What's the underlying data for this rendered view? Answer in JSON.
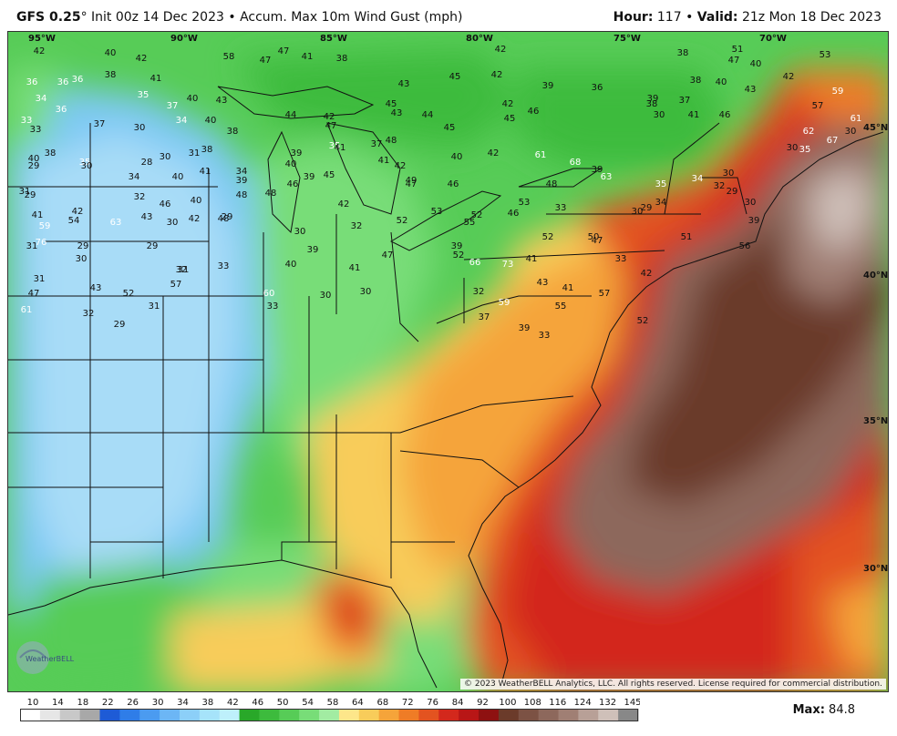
{
  "header": {
    "model": "GFS 0.25",
    "degree_mark": "°",
    "init": "Init 00z 14 Dec 2023",
    "sep": "•",
    "product": "Accum. Max 10m Wind Gust (mph)",
    "hour_label": "Hour:",
    "hour_value": "117",
    "valid_label": "Valid:",
    "valid_value": "21z Mon 18 Dec 2023"
  },
  "max_label": "Max:",
  "max_value": "84.8",
  "copyright": "© 2023 WeatherBELL Analytics, LLC. All rights reserved. License required for commercial distribution.",
  "logo_text": "WeatherBELL",
  "map_labels": {
    "lon": [
      "95°W",
      "90°W",
      "85°W",
      "80°W",
      "75°W",
      "70°W"
    ],
    "lat": [
      "45°N",
      "40°N",
      "35°N",
      "30°N"
    ]
  },
  "legend": {
    "ticks": [
      "10",
      "14",
      "18",
      "22",
      "26",
      "30",
      "34",
      "38",
      "42",
      "46",
      "50",
      "54",
      "58",
      "64",
      "68",
      "72",
      "76",
      "84",
      "92",
      "100",
      "108",
      "116",
      "124",
      "132",
      "145"
    ],
    "colors": [
      "#ffffff",
      "#e6e6e6",
      "#c8c8c8",
      "#a8a8a8",
      "#1e5bd6",
      "#2f7de8",
      "#4b9bf0",
      "#6cb6f5",
      "#8ccff8",
      "#a6e3fa",
      "#bef0fb",
      "#29a829",
      "#3dbb3d",
      "#57cc57",
      "#78dd78",
      "#a2eca2",
      "#fde68a",
      "#f8cc5a",
      "#f5a43a",
      "#ef7c26",
      "#e35320",
      "#d3281c",
      "#b81616",
      "#8e1111",
      "#6b3b2a",
      "#7c5244",
      "#8d685c",
      "#a07f74",
      "#b8a097",
      "#cfc0b9",
      "#888888"
    ]
  },
  "wind_values": [
    {
      "v": "42",
      "c": "d"
    },
    {
      "v": "40",
      "c": "d"
    },
    {
      "v": "42",
      "c": "d"
    },
    {
      "v": "41",
      "c": "d"
    },
    {
      "v": "58",
      "c": "d"
    },
    {
      "v": "47",
      "c": "d"
    },
    {
      "v": "47",
      "c": "d"
    },
    {
      "v": "41",
      "c": "d"
    },
    {
      "v": "38",
      "c": "d"
    },
    {
      "v": "42",
      "c": "d"
    },
    {
      "v": "38",
      "c": "d"
    },
    {
      "v": "51",
      "c": "d"
    },
    {
      "v": "47",
      "c": "d"
    },
    {
      "v": "40",
      "c": "d"
    },
    {
      "v": "53",
      "c": "d"
    },
    {
      "v": "36",
      "c": "w"
    },
    {
      "v": "36",
      "c": "w"
    },
    {
      "v": "38",
      "c": "d"
    },
    {
      "v": "36",
      "c": "w"
    },
    {
      "v": "45",
      "c": "d"
    },
    {
      "v": "42",
      "c": "d"
    },
    {
      "v": "43",
      "c": "d"
    },
    {
      "v": "42",
      "c": "d"
    },
    {
      "v": "39",
      "c": "d"
    },
    {
      "v": "38",
      "c": "d"
    },
    {
      "v": "40",
      "c": "d"
    },
    {
      "v": "43",
      "c": "d"
    },
    {
      "v": "42",
      "c": "d"
    },
    {
      "v": "59",
      "c": "w"
    },
    {
      "v": "34",
      "c": "w"
    },
    {
      "v": "36",
      "c": "w"
    },
    {
      "v": "35",
      "c": "w"
    },
    {
      "v": "40",
      "c": "d"
    },
    {
      "v": "43",
      "c": "d"
    },
    {
      "v": "37",
      "c": "w"
    },
    {
      "v": "45",
      "c": "d"
    },
    {
      "v": "36",
      "c": "d"
    },
    {
      "v": "39",
      "c": "d"
    },
    {
      "v": "37",
      "c": "d"
    },
    {
      "v": "38",
      "c": "d"
    },
    {
      "v": "57",
      "c": "d"
    },
    {
      "v": "33",
      "c": "w"
    },
    {
      "v": "37",
      "c": "d"
    },
    {
      "v": "44",
      "c": "d"
    },
    {
      "v": "42",
      "c": "d"
    },
    {
      "v": "43",
      "c": "d"
    },
    {
      "v": "44",
      "c": "d"
    },
    {
      "v": "46",
      "c": "d"
    },
    {
      "v": "30",
      "c": "d"
    },
    {
      "v": "41",
      "c": "d"
    },
    {
      "v": "46",
      "c": "d"
    },
    {
      "v": "61",
      "c": "w"
    },
    {
      "v": "33",
      "c": "d"
    },
    {
      "v": "34",
      "c": "w"
    },
    {
      "v": "40",
      "c": "d"
    },
    {
      "v": "38",
      "c": "d"
    },
    {
      "v": "47",
      "c": "d"
    },
    {
      "v": "45",
      "c": "d"
    },
    {
      "v": "37",
      "c": "d"
    },
    {
      "v": "45",
      "c": "d"
    },
    {
      "v": "62",
      "c": "w"
    },
    {
      "v": "30",
      "c": "d"
    },
    {
      "v": "30",
      "c": "d"
    },
    {
      "v": "38",
      "c": "d"
    },
    {
      "v": "40",
      "c": "d"
    },
    {
      "v": "35",
      "c": "w"
    },
    {
      "v": "48",
      "c": "d"
    },
    {
      "v": "39",
      "c": "d"
    },
    {
      "v": "67",
      "c": "w"
    },
    {
      "v": "40",
      "c": "d"
    },
    {
      "v": "38",
      "c": "d"
    },
    {
      "v": "35",
      "c": "w"
    },
    {
      "v": "28",
      "c": "d"
    },
    {
      "v": "30",
      "c": "d"
    },
    {
      "v": "31",
      "c": "d"
    },
    {
      "v": "34",
      "c": "d"
    },
    {
      "v": "39",
      "c": "d"
    },
    {
      "v": "41",
      "c": "d"
    },
    {
      "v": "41",
      "c": "d"
    },
    {
      "v": "40",
      "c": "d"
    },
    {
      "v": "42",
      "c": "d"
    },
    {
      "v": "61",
      "c": "w"
    },
    {
      "v": "68",
      "c": "w"
    },
    {
      "v": "39",
      "c": "d"
    },
    {
      "v": "35",
      "c": "w"
    },
    {
      "v": "30",
      "c": "d"
    },
    {
      "v": "29",
      "c": "d"
    },
    {
      "v": "30",
      "c": "d"
    },
    {
      "v": "34",
      "c": "d"
    },
    {
      "v": "40",
      "c": "d"
    },
    {
      "v": "41",
      "c": "d"
    },
    {
      "v": "39",
      "c": "d"
    },
    {
      "v": "45",
      "c": "d"
    },
    {
      "v": "46",
      "c": "d"
    },
    {
      "v": "42",
      "c": "d"
    },
    {
      "v": "47",
      "c": "d"
    },
    {
      "v": "46",
      "c": "d"
    },
    {
      "v": "48",
      "c": "d"
    },
    {
      "v": "63",
      "c": "w"
    },
    {
      "v": "35",
      "c": "w"
    },
    {
      "v": "34",
      "c": "w"
    },
    {
      "v": "30",
      "c": "d"
    },
    {
      "v": "29",
      "c": "d"
    },
    {
      "v": "31",
      "c": "d"
    },
    {
      "v": "32",
      "c": "d"
    },
    {
      "v": "46",
      "c": "d"
    },
    {
      "v": "40",
      "c": "d"
    },
    {
      "v": "48",
      "c": "d"
    },
    {
      "v": "48",
      "c": "d"
    },
    {
      "v": "42",
      "c": "d"
    },
    {
      "v": "49",
      "c": "d"
    },
    {
      "v": "53",
      "c": "d"
    },
    {
      "v": "52",
      "c": "d"
    },
    {
      "v": "53",
      "c": "d"
    },
    {
      "v": "33",
      "c": "d"
    },
    {
      "v": "30",
      "c": "d"
    },
    {
      "v": "29",
      "c": "d"
    },
    {
      "v": "29",
      "c": "d"
    },
    {
      "v": "30",
      "c": "d"
    },
    {
      "v": "32",
      "c": "d"
    },
    {
      "v": "34",
      "c": "d"
    },
    {
      "v": "39",
      "c": "d"
    },
    {
      "v": "41",
      "c": "d"
    },
    {
      "v": "42",
      "c": "d"
    },
    {
      "v": "43",
      "c": "d"
    },
    {
      "v": "42",
      "c": "d"
    },
    {
      "v": "48",
      "c": "d"
    },
    {
      "v": "46",
      "c": "d"
    },
    {
      "v": "47",
      "c": "d"
    },
    {
      "v": "50",
      "c": "d"
    },
    {
      "v": "51",
      "c": "d"
    },
    {
      "v": "59",
      "c": "w"
    },
    {
      "v": "54",
      "c": "d"
    },
    {
      "v": "63",
      "c": "w"
    },
    {
      "v": "30",
      "c": "d"
    },
    {
      "v": "29",
      "c": "d"
    },
    {
      "v": "30",
      "c": "d"
    },
    {
      "v": "32",
      "c": "d"
    },
    {
      "v": "52",
      "c": "d"
    },
    {
      "v": "55",
      "c": "d"
    },
    {
      "v": "52",
      "c": "d"
    },
    {
      "v": "56",
      "c": "d"
    },
    {
      "v": "76",
      "c": "w"
    },
    {
      "v": "31",
      "c": "d"
    },
    {
      "v": "29",
      "c": "d"
    },
    {
      "v": "29",
      "c": "d"
    },
    {
      "v": "31",
      "c": "d"
    },
    {
      "v": "39",
      "c": "d"
    },
    {
      "v": "40",
      "c": "d"
    },
    {
      "v": "41",
      "c": "d"
    },
    {
      "v": "47",
      "c": "d"
    },
    {
      "v": "52",
      "c": "d"
    },
    {
      "v": "66",
      "c": "w"
    },
    {
      "v": "73",
      "c": "w"
    },
    {
      "v": "33",
      "c": "d"
    },
    {
      "v": "30",
      "c": "d"
    },
    {
      "v": "31",
      "c": "d"
    },
    {
      "v": "32",
      "c": "d"
    },
    {
      "v": "33",
      "c": "d"
    },
    {
      "v": "39",
      "c": "d"
    },
    {
      "v": "41",
      "c": "d"
    },
    {
      "v": "42",
      "c": "d"
    },
    {
      "v": "43",
      "c": "d"
    },
    {
      "v": "47",
      "c": "d"
    },
    {
      "v": "52",
      "c": "d"
    },
    {
      "v": "57",
      "c": "d"
    },
    {
      "v": "60",
      "c": "w"
    },
    {
      "v": "30",
      "c": "d"
    },
    {
      "v": "30",
      "c": "d"
    },
    {
      "v": "32",
      "c": "d"
    },
    {
      "v": "43",
      "c": "d"
    },
    {
      "v": "41",
      "c": "d"
    },
    {
      "v": "57",
      "c": "d"
    },
    {
      "v": "61",
      "c": "w"
    },
    {
      "v": "32",
      "c": "d"
    },
    {
      "v": "29",
      "c": "d"
    },
    {
      "v": "31",
      "c": "d"
    },
    {
      "v": "33",
      "c": "d"
    },
    {
      "v": "33",
      "c": "d"
    },
    {
      "v": "37",
      "c": "d"
    },
    {
      "v": "39",
      "c": "d"
    },
    {
      "v": "59",
      "c": "w"
    },
    {
      "v": "55",
      "c": "d"
    },
    {
      "v": "52",
      "c": "d"
    },
    {
      "v": "66",
      "c": "w"
    },
    {
      "v": "33",
      "c": "d"
    },
    {
      "v": "30",
      "c": "d"
    },
    {
      "v": "29",
      "c": "d"
    },
    {
      "v": "31",
      "c": "d"
    },
    {
      "v": "37",
      "c": "d"
    },
    {
      "v": "62",
      "c": "w"
    },
    {
      "v": "52",
      "c": "d"
    },
    {
      "v": "57",
      "c": "d"
    },
    {
      "v": "55",
      "c": "d"
    },
    {
      "v": "61",
      "c": "w"
    },
    {
      "v": "69",
      "c": "w"
    }
  ]
}
